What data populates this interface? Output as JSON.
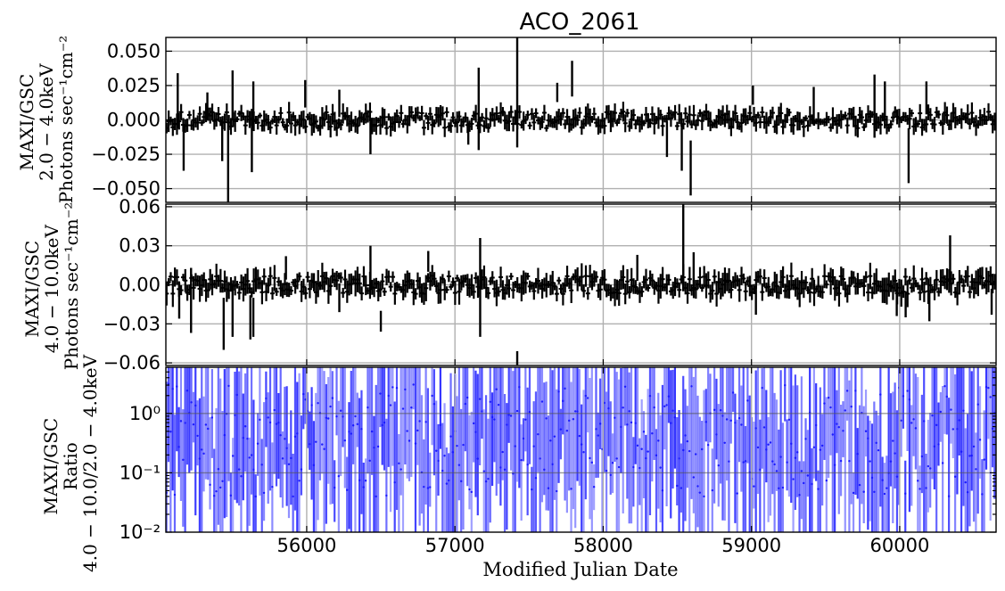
{
  "chart_data": {
    "type": "errorbar-lightcurve",
    "title": "ACO_2061",
    "xlabel": "Modified Julian Date",
    "xlim": [
      55050,
      60650
    ],
    "xticks": [
      56000,
      57000,
      58000,
      59000,
      60000
    ],
    "xtick_labels": [
      "56000",
      "57000",
      "58000",
      "59000",
      "60000"
    ],
    "grid": true,
    "panels": [
      {
        "id": "soft",
        "ylabel_lines": [
          "MAXI/GSC",
          "2.0 − 4.0keV",
          "Photons sec⁻¹cm⁻²"
        ],
        "ylim": [
          -0.06,
          0.06
        ],
        "yticks": [
          -0.05,
          -0.025,
          0.0,
          0.025,
          0.05
        ],
        "ytick_labels": [
          "−0.050",
          "−0.025",
          "0.000",
          "0.025",
          "0.050"
        ],
        "color": "#000000",
        "data": [
          [
            55130,
            0.014,
            0.02
          ],
          [
            55170,
            -0.02,
            0.017
          ],
          [
            55330,
            0.01,
            0.01
          ],
          [
            55430,
            -0.015,
            0.015
          ],
          [
            55470,
            -0.03,
            0.03
          ],
          [
            55500,
            0.018,
            0.018
          ],
          [
            55630,
            -0.015,
            0.023
          ],
          [
            55640,
            0.015,
            0.013
          ],
          [
            55990,
            0.019,
            0.01
          ],
          [
            56220,
            0.012,
            0.01
          ],
          [
            56430,
            -0.012,
            0.013
          ],
          [
            57090,
            -0.01,
            0.008
          ],
          [
            57160,
            0.008,
            0.03
          ],
          [
            57420,
            0.02,
            0.04
          ],
          [
            57690,
            0.02,
            0.007
          ],
          [
            57790,
            0.03,
            0.013
          ],
          [
            58430,
            -0.014,
            0.013
          ],
          [
            58530,
            -0.02,
            0.017
          ],
          [
            58590,
            -0.035,
            0.02
          ],
          [
            59010,
            0.018,
            0.007
          ],
          [
            59420,
            0.01,
            0.014
          ],
          [
            59830,
            0.01,
            0.023
          ],
          [
            59900,
            0.015,
            0.013
          ],
          [
            60060,
            -0.026,
            0.02
          ],
          [
            60180,
            0.016,
            0.012
          ]
        ]
      },
      {
        "id": "hard",
        "ylabel_lines": [
          "MAXI/GSC",
          "4.0 − 10.0keV",
          "Photons sec⁻¹cm⁻²"
        ],
        "ylim": [
          -0.062,
          0.062
        ],
        "yticks": [
          -0.06,
          -0.03,
          0.0,
          0.03,
          0.06
        ],
        "ytick_labels": [
          "−0.06",
          "−0.03",
          "0.00",
          "0.03",
          "0.06"
        ],
        "color": "#000000",
        "data": [
          [
            55140,
            -0.012,
            0.014
          ],
          [
            55220,
            -0.012,
            0.025
          ],
          [
            55440,
            -0.03,
            0.02
          ],
          [
            55500,
            -0.02,
            0.02
          ],
          [
            55620,
            -0.025,
            0.017
          ],
          [
            55640,
            -0.025,
            0.015
          ],
          [
            55860,
            0.013,
            0.009
          ],
          [
            56220,
            -0.01,
            0.011
          ],
          [
            56430,
            0.013,
            0.017
          ],
          [
            56500,
            -0.028,
            0.008
          ],
          [
            56820,
            0.018,
            0.008
          ],
          [
            57170,
            -0.002,
            0.038
          ],
          [
            57420,
            -0.058,
            0.007
          ],
          [
            58230,
            0.013,
            0.01
          ],
          [
            58540,
            0.03,
            0.035
          ],
          [
            58610,
            0.012,
            0.013
          ],
          [
            59030,
            -0.012,
            0.011
          ],
          [
            59980,
            -0.014,
            0.01
          ],
          [
            60040,
            -0.015,
            0.01
          ],
          [
            60200,
            -0.017,
            0.011
          ],
          [
            60340,
            0.02,
            0.018
          ],
          [
            60620,
            -0.013,
            0.01
          ]
        ]
      },
      {
        "id": "ratio",
        "ylabel_lines": [
          "MAXI/GSC",
          "Ratio",
          "4.0 − 10.0/2.0 − 4.0keV"
        ],
        "yscale": "log",
        "ylim": [
          0.01,
          6.0
        ],
        "yticks": [
          0.01,
          0.1,
          1.0
        ],
        "ytick_labels": [
          "10⁻²",
          "10⁻¹",
          "10⁰"
        ],
        "color": "#0000ff"
      }
    ]
  }
}
